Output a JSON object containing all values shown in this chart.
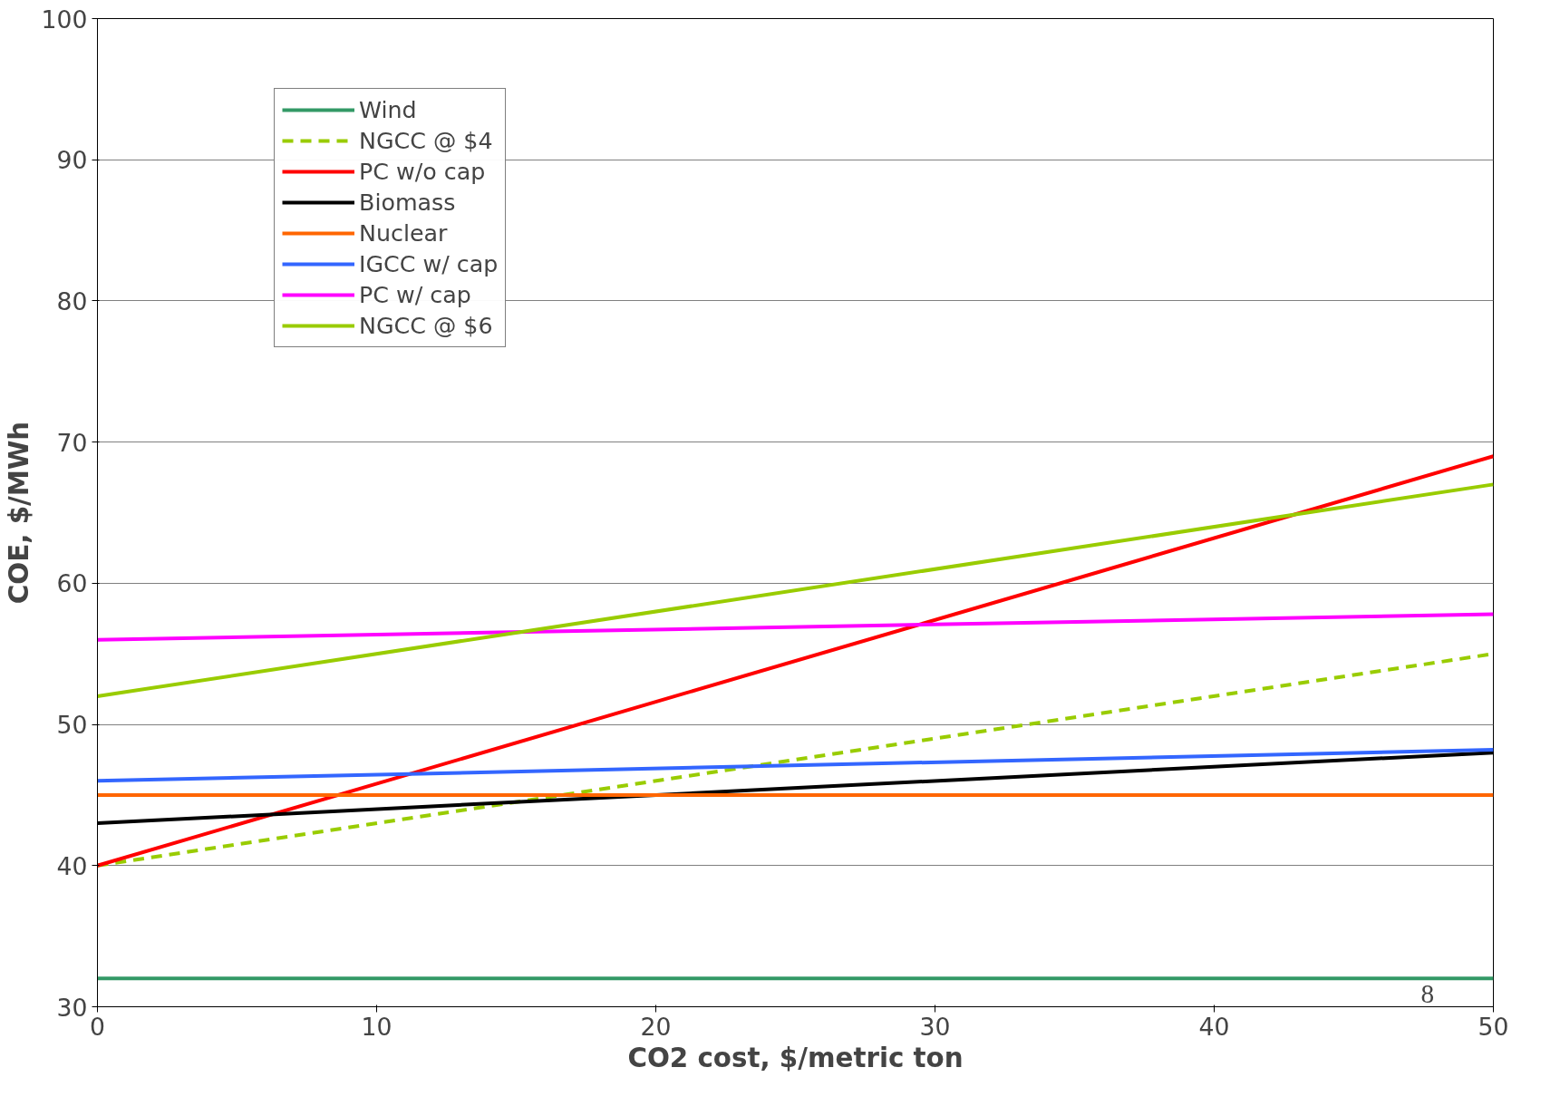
{
  "chart_data": {
    "type": "line",
    "xlabel": "CO2 cost, $/metric ton",
    "ylabel": "COE, $/MWh",
    "x": [
      0,
      50
    ],
    "xlim": [
      0,
      50
    ],
    "ylim": [
      30,
      100
    ],
    "xticks": [
      0,
      10,
      20,
      30,
      40,
      50
    ],
    "yticks": [
      30,
      40,
      50,
      60,
      70,
      80,
      90,
      100
    ],
    "grid": "y",
    "legend": "top left",
    "line_style": "solid",
    "series": [
      {
        "name": "Wind",
        "color": "#339966",
        "values": [
          32,
          32
        ]
      },
      {
        "name": "NGCC @ $4",
        "color": "#99cc00",
        "values": [
          40,
          55
        ],
        "line_style": "dashed"
      },
      {
        "name": "PC w/o cap",
        "color": "#ff0000",
        "values": [
          40,
          69
        ]
      },
      {
        "name": "Biomass",
        "color": "#000000",
        "values": [
          43,
          48
        ]
      },
      {
        "name": "Nuclear",
        "color": "#ff6600",
        "values": [
          45,
          45
        ]
      },
      {
        "name": "IGCC w/ cap",
        "color": "#3366ff",
        "values": [
          46,
          48.2
        ]
      },
      {
        "name": "PC w/ cap",
        "color": "#ff00ff",
        "values": [
          56,
          57.8
        ]
      },
      {
        "name": "NGCC @ $6",
        "color": "#99cc00",
        "values": [
          52,
          67
        ]
      }
    ],
    "annotations": [
      "8"
    ]
  }
}
